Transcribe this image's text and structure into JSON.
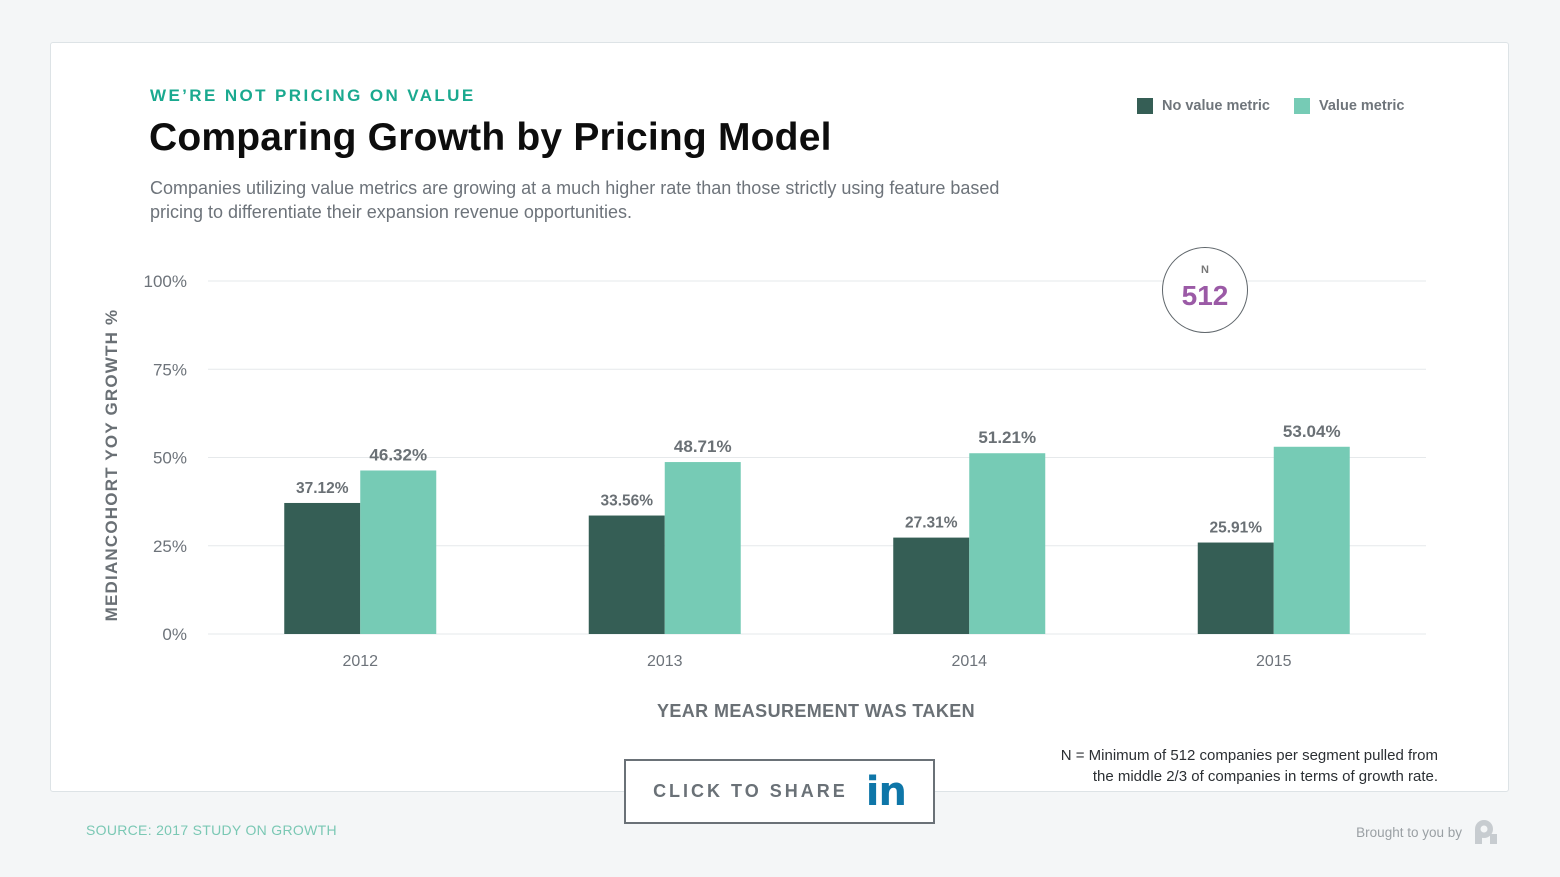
{
  "header": {
    "eyebrow": "WE’RE NOT PRICING ON VALUE",
    "title": "Comparing Growth by Pricing Model",
    "subtitle": "Companies utilizing value metrics are growing at a much higher rate than those strictly using feature based pricing to differentiate their expansion revenue opportunities."
  },
  "legend": [
    {
      "label": "No value metric",
      "color": "#355e55"
    },
    {
      "label": "Value metric",
      "color": "#76cbb5"
    }
  ],
  "n_badge": {
    "label": "N",
    "value": "512"
  },
  "chart_data": {
    "type": "bar",
    "categories": [
      "2012",
      "2013",
      "2014",
      "2015"
    ],
    "series": [
      {
        "name": "No value metric",
        "color": "#355e55",
        "values": [
          37.12,
          33.56,
          27.31,
          25.91
        ],
        "labels": [
          "37.12%",
          "33.56%",
          "27.31%",
          "25.91%"
        ]
      },
      {
        "name": "Value metric",
        "color": "#76cbb5",
        "values": [
          46.32,
          48.71,
          51.21,
          53.04
        ],
        "labels": [
          "46.32%",
          "48.71%",
          "51.21%",
          "53.04%"
        ]
      }
    ],
    "ylim": [
      0,
      100
    ],
    "yticks": [
      0,
      25,
      50,
      75,
      100
    ],
    "ytick_labels": [
      "0%",
      "25%",
      "50%",
      "75%",
      "100%"
    ],
    "xlabel": "YEAR MEASUREMENT WAS TAKEN",
    "ylabel": "MEDIANCOHORT YOY GROWTH %",
    "grid": true,
    "legend_position": "top-right"
  },
  "footnote": {
    "line1": "N = Minimum of 512 companies per segment pulled from",
    "line2": "the middle 2/3 of companies in terms of growth rate."
  },
  "share": {
    "label": "CLICK TO SHARE",
    "icon": "linkedin-icon",
    "icon_text": "in"
  },
  "footer": {
    "source": "SOURCE: 2017 STUDY ON GROWTH",
    "brought_by": "Brought to you by",
    "logo_icon": "profitwell-logo-icon"
  }
}
